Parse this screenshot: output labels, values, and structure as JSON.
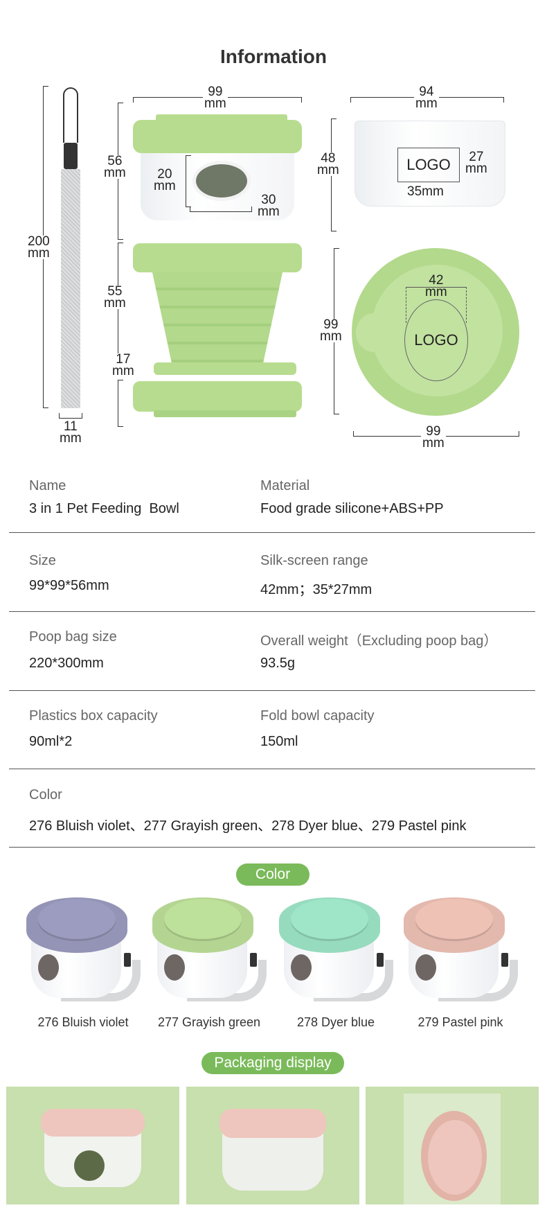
{
  "title": "Information",
  "dimensions": {
    "strap_length": "200\nmm",
    "strap_width": "11\nmm",
    "bowl_width": "99\nmm",
    "bowl_height": "56\nmm",
    "window_height": "20\nmm",
    "window_width": "30\nmm",
    "fold_height": "55\nmm",
    "lid_height": "17\nmm",
    "box_width": "94\nmm",
    "box_height": "48\nmm",
    "box_logo": "LOGO",
    "box_logo_height": "27\nmm",
    "box_logo_width": "35mm",
    "top_diameter": "99\nmm",
    "top_width": "99\nmm",
    "top_logo_diameter": "42\nmm",
    "top_logo": "LOGO"
  },
  "specs": [
    {
      "left_label": "Name",
      "left_value": "3 in 1 Pet Feeding  Bowl",
      "right_label": "Material",
      "right_value": "Food grade silicone+ABS+PP"
    },
    {
      "left_label": "Size",
      "left_value": "99*99*56mm",
      "right_label": "Silk-screen range",
      "right_value": "42mm；35*27mm"
    },
    {
      "left_label": "Poop bag size",
      "left_value": "220*300mm",
      "right_label": "Overall weight（Excluding poop bag）",
      "right_value": "93.5g"
    },
    {
      "left_label": "Plastics box capacity",
      "left_value": "90ml*2",
      "right_label": "Fold bowl capacity",
      "right_value": "150ml"
    }
  ],
  "color_row": {
    "label": "Color",
    "value": "276 Bluish violet、277 Grayish green、278 Dyer blue、279 Pastel pink"
  },
  "color_section": {
    "title": "Color",
    "products": [
      {
        "label": "276 Bluish violet",
        "color": "#9c9cc0"
      },
      {
        "label": "277 Grayish green",
        "color": "#bde09a"
      },
      {
        "label": "278 Dyer blue",
        "color": "#9fe6c8"
      },
      {
        "label": "279 Pastel pink",
        "color": "#efc2b6"
      }
    ]
  },
  "packaging_section": {
    "title": "Packaging display"
  },
  "colors": {
    "accent": "#7aba5a",
    "silicone_green": "#b7dc8f"
  }
}
